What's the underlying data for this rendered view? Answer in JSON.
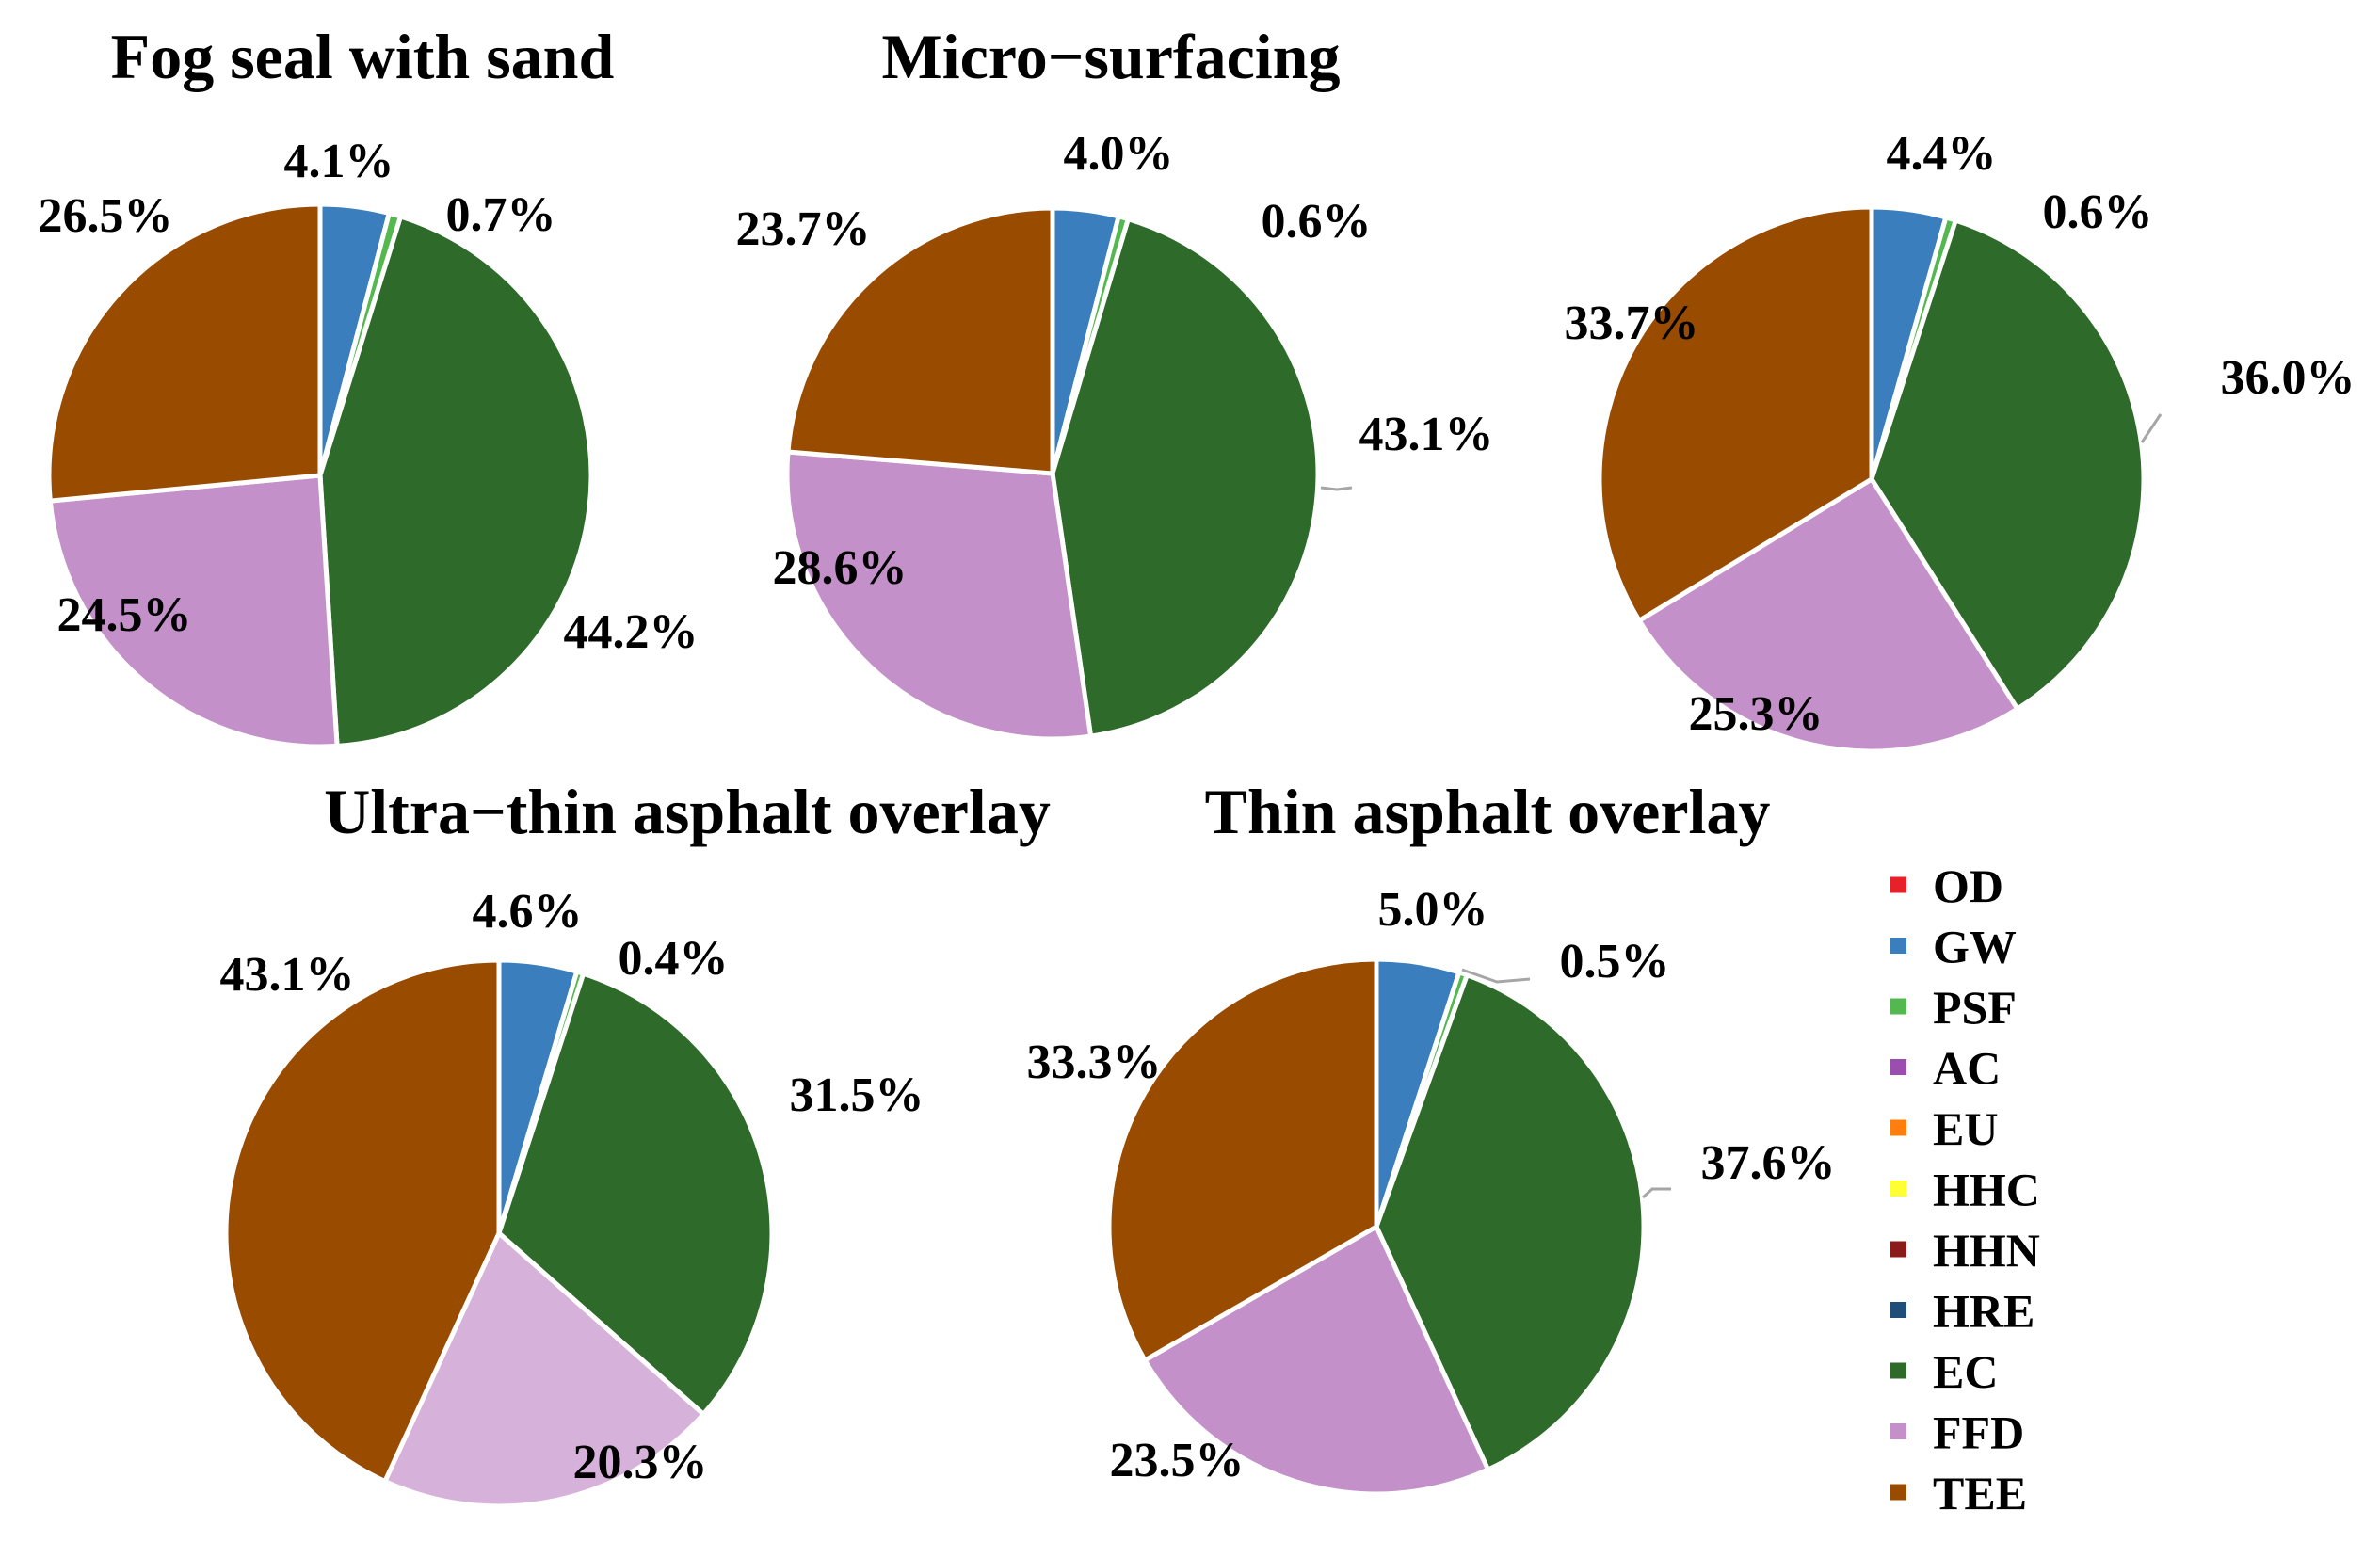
{
  "chart_data": {
    "type": "pie",
    "categories": [
      "OD",
      "GW",
      "PSF",
      "AC",
      "EU",
      "HHC",
      "HHN",
      "HRE",
      "EC",
      "FFD",
      "TEE"
    ],
    "colors": {
      "OD": "#e8202a",
      "GW": "#3a7ebd",
      "PSF": "#53b84f",
      "AC": "#9a4eae",
      "EU": "#ff7f0e",
      "HHC": "#ffff33",
      "HHN": "#8b1a1a",
      "HRE": "#1f4e79",
      "EC": "#2e6b2a",
      "FFD": "#c490c9",
      "TEE": "#994c00"
    },
    "charts": [
      {
        "id": "fog-seal",
        "title": "Fog seal with sand",
        "slices": [
          {
            "category": "GW",
            "value": 4.1,
            "label": "4.1%"
          },
          {
            "category": "PSF",
            "value": 0.7,
            "label": "0.7%"
          },
          {
            "category": "EC",
            "value": 44.2,
            "label": "44.2%"
          },
          {
            "category": "FFD",
            "value": 24.5,
            "label": "24.5%"
          },
          {
            "category": "TEE",
            "value": 26.5,
            "label": "26.5%"
          }
        ]
      },
      {
        "id": "micro-surfacing",
        "title": "Micro−surfacing",
        "slices": [
          {
            "category": "GW",
            "value": 4.0,
            "label": "4.0%"
          },
          {
            "category": "PSF",
            "value": 0.6,
            "label": "0.6%"
          },
          {
            "category": "EC",
            "value": 43.1,
            "label": "43.1%"
          },
          {
            "category": "FFD",
            "value": 28.6,
            "label": "28.6%"
          },
          {
            "category": "TEE",
            "value": 23.7,
            "label": "23.7%"
          }
        ]
      },
      {
        "id": "third",
        "title": "",
        "slices": [
          {
            "category": "GW",
            "value": 4.4,
            "label": "4.4%"
          },
          {
            "category": "PSF",
            "value": 0.6,
            "label": "0.6%"
          },
          {
            "category": "EC",
            "value": 36.0,
            "label": "36.0%"
          },
          {
            "category": "FFD",
            "value": 25.3,
            "label": "25.3%"
          },
          {
            "category": "TEE",
            "value": 33.7,
            "label": "33.7%"
          }
        ]
      },
      {
        "id": "ultra-thin",
        "title": "Ultra−thin asphalt overlay",
        "slices": [
          {
            "category": "GW",
            "value": 4.6,
            "label": "4.6%"
          },
          {
            "category": "PSF",
            "value": 0.4,
            "label": "0.4%"
          },
          {
            "category": "EC",
            "value": 31.5,
            "label": "31.5%"
          },
          {
            "category": "FFD",
            "value": 20.3,
            "label": "20.3%",
            "color": "#d6b2da"
          },
          {
            "category": "TEE",
            "value": 43.1,
            "label": "43.1%"
          }
        ]
      },
      {
        "id": "thin",
        "title": "Thin asphalt overlay",
        "slices": [
          {
            "category": "GW",
            "value": 5.0,
            "label": "5.0%"
          },
          {
            "category": "PSF",
            "value": 0.5,
            "label": "0.5%"
          },
          {
            "category": "EC",
            "value": 37.6,
            "label": "37.6%"
          },
          {
            "category": "FFD",
            "value": 23.5,
            "label": "23.5%"
          },
          {
            "category": "TEE",
            "value": 33.3,
            "label": "33.3%"
          }
        ]
      }
    ],
    "legend": [
      "OD",
      "GW",
      "PSF",
      "AC",
      "EU",
      "HHC",
      "HHN",
      "HRE",
      "EC",
      "FFD",
      "TEE"
    ]
  }
}
